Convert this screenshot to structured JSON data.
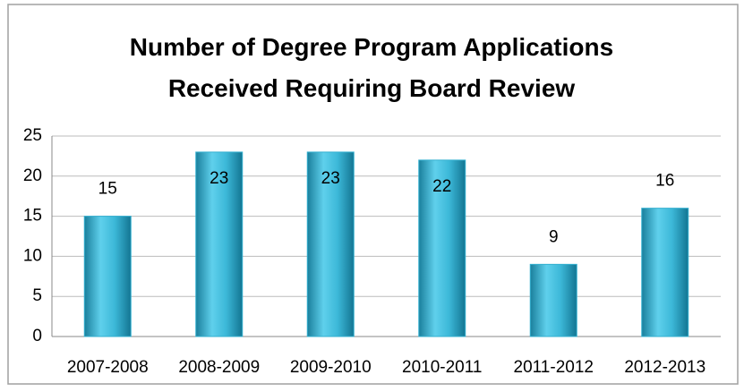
{
  "chart_data": {
    "type": "bar",
    "title": "Number of Degree Program Applications Received Requiring Board Review",
    "categories": [
      "2007-2008",
      "2008-2009",
      "2009-2010",
      "2010-2011",
      "2011-2012",
      "2012-2013"
    ],
    "values": [
      15,
      23,
      23,
      22,
      9,
      16
    ],
    "color": "#33b0d0",
    "ylim": [
      0,
      25
    ],
    "yticks": [
      0,
      5,
      10,
      15,
      20,
      25
    ],
    "grid": true
  }
}
